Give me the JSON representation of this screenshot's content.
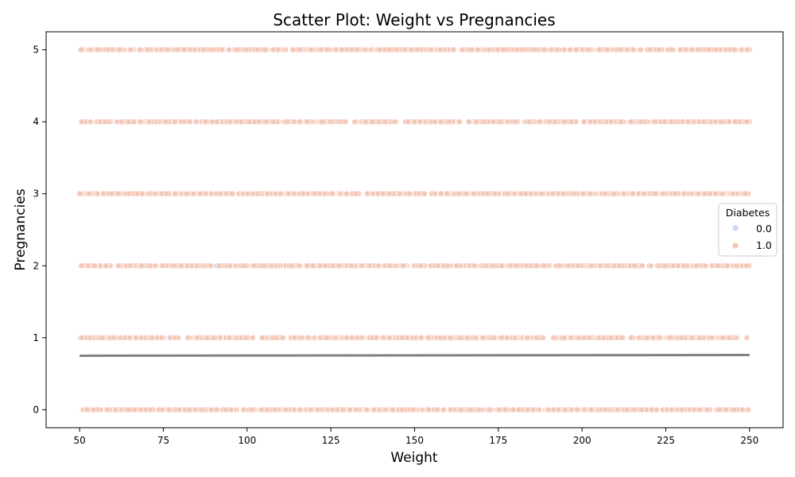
{
  "chart_data": {
    "type": "scatter",
    "title": "Scatter Plot: Weight vs Pregnancies",
    "xlabel": "Weight",
    "ylabel": "Pregnancies",
    "xlim": [
      40,
      260
    ],
    "ylim": [
      -0.25,
      5.25
    ],
    "x_ticks": [
      50,
      75,
      100,
      125,
      150,
      175,
      200,
      225,
      250
    ],
    "y_ticks": [
      0,
      1,
      2,
      3,
      4,
      5
    ],
    "grid": false,
    "legend": {
      "title": "Diabetes",
      "placement": "center-right",
      "entries": [
        {
          "label": "0.0",
          "color": "#c8d8f4"
        },
        {
          "label": "1.0",
          "color": "#f3c6b4"
        }
      ]
    },
    "series": [
      {
        "name": "0.0",
        "color": "#c8d8f4",
        "x_range": [
          50,
          100
        ],
        "y_levels": [
          0,
          1,
          2,
          3,
          4,
          5
        ]
      },
      {
        "name": "1.0",
        "color": "#f3c6b4",
        "x_range": [
          50,
          250
        ],
        "y_levels": [
          0,
          1,
          2,
          3,
          4,
          5
        ]
      }
    ],
    "trend_line": {
      "color": "#808080",
      "points": [
        [
          50,
          0.75
        ],
        [
          250,
          0.76
        ]
      ]
    }
  }
}
